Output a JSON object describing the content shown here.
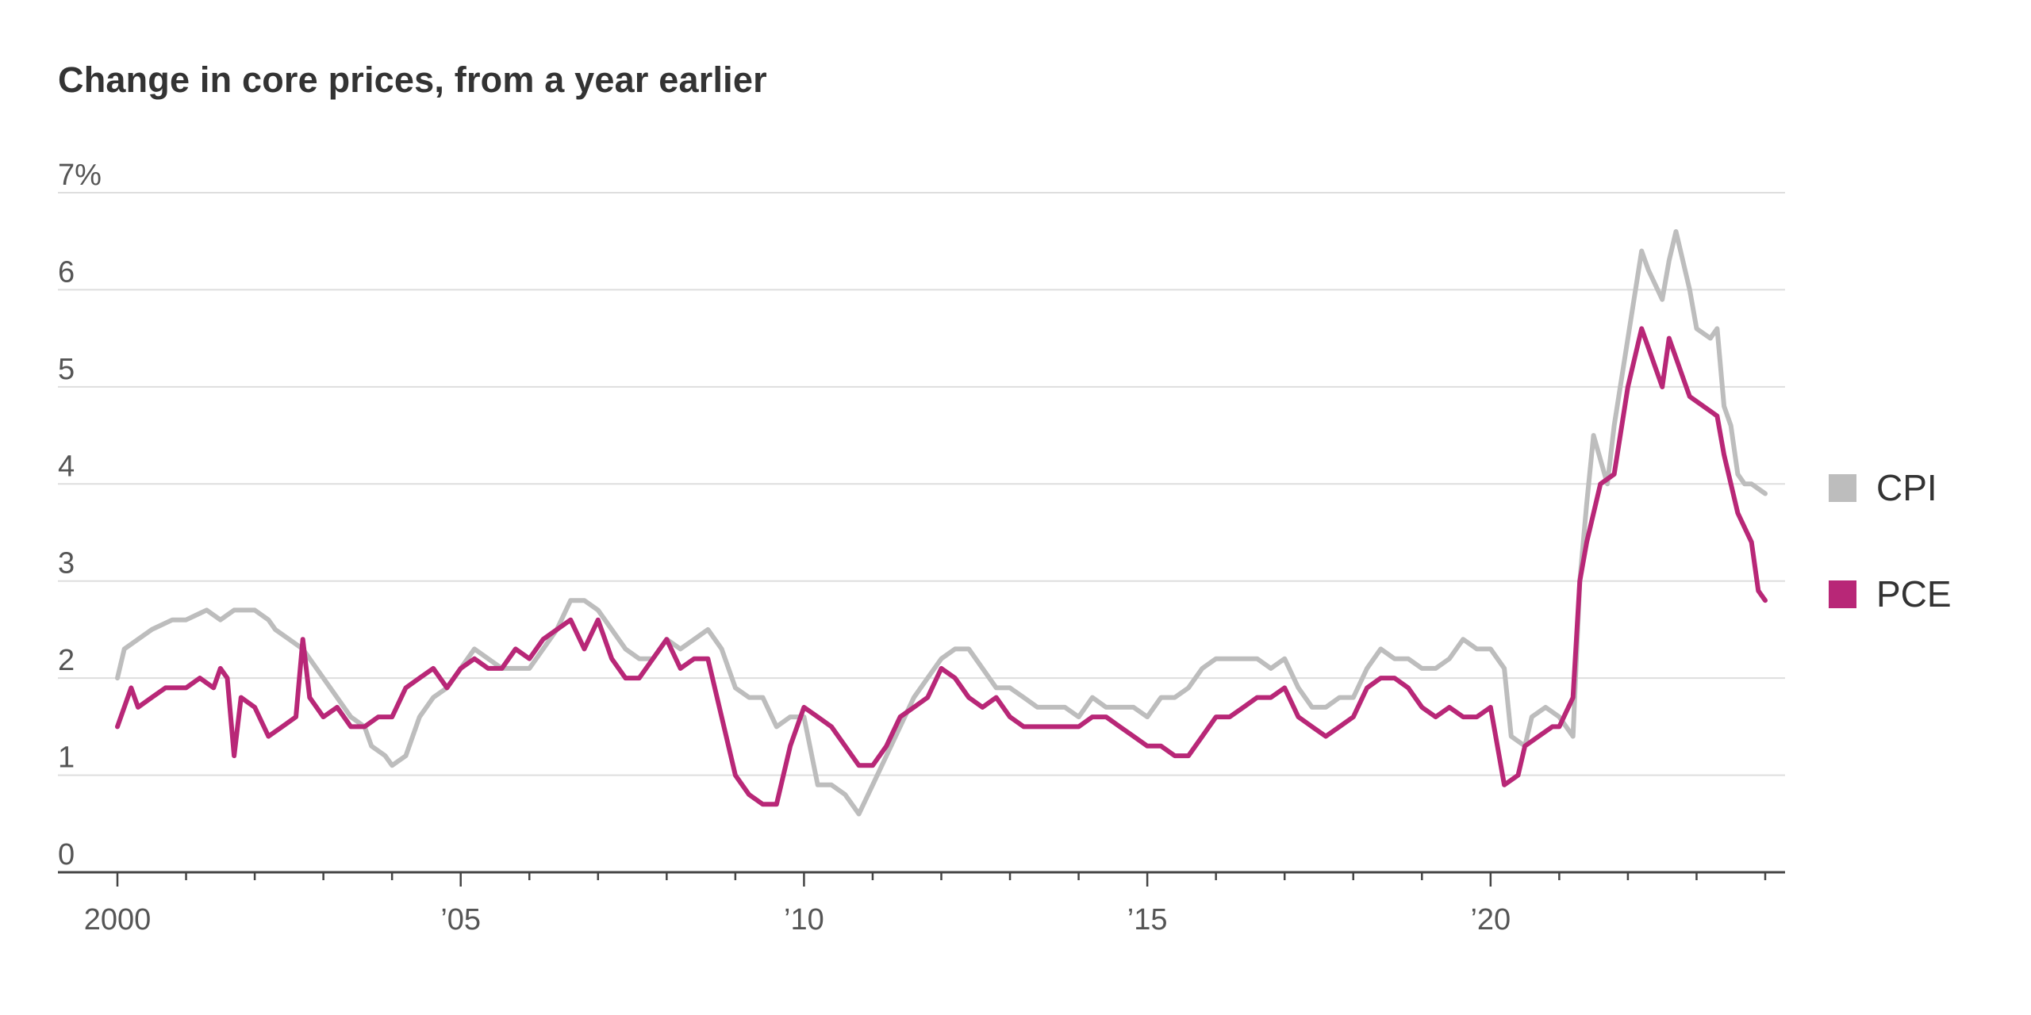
{
  "chart_data": {
    "type": "line",
    "title": "Change in core prices, from a year earlier",
    "xlabel": "",
    "ylabel": "",
    "xlim": [
      2000.0,
      2024.0
    ],
    "ylim": [
      0,
      7
    ],
    "grid": true,
    "legend_position": "right",
    "y_ticks": [
      {
        "value": 7,
        "label": "7%"
      },
      {
        "value": 6,
        "label": "6"
      },
      {
        "value": 5,
        "label": "5"
      },
      {
        "value": 4,
        "label": "4"
      },
      {
        "value": 3,
        "label": "3"
      },
      {
        "value": 2,
        "label": "2"
      },
      {
        "value": 1,
        "label": "1"
      },
      {
        "value": 0,
        "label": "0"
      }
    ],
    "x_ticks": [
      {
        "value": 2000,
        "label": "2000"
      },
      {
        "value": 2005,
        "label": "’05"
      },
      {
        "value": 2010,
        "label": "’10"
      },
      {
        "value": 2015,
        "label": "’15"
      },
      {
        "value": 2020,
        "label": "’20"
      }
    ],
    "series": [
      {
        "name": "CPI",
        "color": "#bdbdbd",
        "points": [
          [
            2000.0,
            2.0
          ],
          [
            2000.1,
            2.3
          ],
          [
            2000.3,
            2.4
          ],
          [
            2000.5,
            2.5
          ],
          [
            2000.8,
            2.6
          ],
          [
            2001.0,
            2.6
          ],
          [
            2001.3,
            2.7
          ],
          [
            2001.5,
            2.6
          ],
          [
            2001.7,
            2.7
          ],
          [
            2002.0,
            2.7
          ],
          [
            2002.2,
            2.6
          ],
          [
            2002.3,
            2.5
          ],
          [
            2002.5,
            2.4
          ],
          [
            2002.7,
            2.3
          ],
          [
            2002.8,
            2.2
          ],
          [
            2003.0,
            2.0
          ],
          [
            2003.2,
            1.8
          ],
          [
            2003.4,
            1.6
          ],
          [
            2003.6,
            1.5
          ],
          [
            2003.7,
            1.3
          ],
          [
            2003.9,
            1.2
          ],
          [
            2004.0,
            1.1
          ],
          [
            2004.2,
            1.2
          ],
          [
            2004.4,
            1.6
          ],
          [
            2004.6,
            1.8
          ],
          [
            2004.8,
            1.9
          ],
          [
            2005.0,
            2.1
          ],
          [
            2005.2,
            2.3
          ],
          [
            2005.4,
            2.2
          ],
          [
            2005.6,
            2.1
          ],
          [
            2005.8,
            2.1
          ],
          [
            2006.0,
            2.1
          ],
          [
            2006.2,
            2.3
          ],
          [
            2006.4,
            2.5
          ],
          [
            2006.6,
            2.8
          ],
          [
            2006.8,
            2.8
          ],
          [
            2007.0,
            2.7
          ],
          [
            2007.2,
            2.5
          ],
          [
            2007.4,
            2.3
          ],
          [
            2007.6,
            2.2
          ],
          [
            2007.8,
            2.2
          ],
          [
            2008.0,
            2.4
          ],
          [
            2008.2,
            2.3
          ],
          [
            2008.4,
            2.4
          ],
          [
            2008.6,
            2.5
          ],
          [
            2008.8,
            2.3
          ],
          [
            2009.0,
            1.9
          ],
          [
            2009.2,
            1.8
          ],
          [
            2009.4,
            1.8
          ],
          [
            2009.6,
            1.5
          ],
          [
            2009.8,
            1.6
          ],
          [
            2010.0,
            1.6
          ],
          [
            2010.2,
            0.9
          ],
          [
            2010.4,
            0.9
          ],
          [
            2010.6,
            0.8
          ],
          [
            2010.8,
            0.6
          ],
          [
            2011.0,
            0.9
          ],
          [
            2011.2,
            1.2
          ],
          [
            2011.4,
            1.5
          ],
          [
            2011.6,
            1.8
          ],
          [
            2011.8,
            2.0
          ],
          [
            2012.0,
            2.2
          ],
          [
            2012.2,
            2.3
          ],
          [
            2012.4,
            2.3
          ],
          [
            2012.6,
            2.1
          ],
          [
            2012.8,
            1.9
          ],
          [
            2013.0,
            1.9
          ],
          [
            2013.2,
            1.8
          ],
          [
            2013.4,
            1.7
          ],
          [
            2013.6,
            1.7
          ],
          [
            2013.8,
            1.7
          ],
          [
            2014.0,
            1.6
          ],
          [
            2014.2,
            1.8
          ],
          [
            2014.4,
            1.7
          ],
          [
            2014.6,
            1.7
          ],
          [
            2014.8,
            1.7
          ],
          [
            2015.0,
            1.6
          ],
          [
            2015.2,
            1.8
          ],
          [
            2015.4,
            1.8
          ],
          [
            2015.6,
            1.9
          ],
          [
            2015.8,
            2.1
          ],
          [
            2016.0,
            2.2
          ],
          [
            2016.2,
            2.2
          ],
          [
            2016.4,
            2.2
          ],
          [
            2016.6,
            2.2
          ],
          [
            2016.8,
            2.1
          ],
          [
            2017.0,
            2.2
          ],
          [
            2017.2,
            1.9
          ],
          [
            2017.4,
            1.7
          ],
          [
            2017.6,
            1.7
          ],
          [
            2017.8,
            1.8
          ],
          [
            2018.0,
            1.8
          ],
          [
            2018.2,
            2.1
          ],
          [
            2018.4,
            2.3
          ],
          [
            2018.6,
            2.2
          ],
          [
            2018.8,
            2.2
          ],
          [
            2019.0,
            2.1
          ],
          [
            2019.2,
            2.1
          ],
          [
            2019.4,
            2.2
          ],
          [
            2019.6,
            2.4
          ],
          [
            2019.8,
            2.3
          ],
          [
            2020.0,
            2.3
          ],
          [
            2020.2,
            2.1
          ],
          [
            2020.3,
            1.4
          ],
          [
            2020.5,
            1.3
          ],
          [
            2020.6,
            1.6
          ],
          [
            2020.8,
            1.7
          ],
          [
            2021.0,
            1.6
          ],
          [
            2021.2,
            1.4
          ],
          [
            2021.3,
            3.0
          ],
          [
            2021.4,
            3.8
          ],
          [
            2021.5,
            4.5
          ],
          [
            2021.7,
            4.0
          ],
          [
            2021.8,
            4.6
          ],
          [
            2022.0,
            5.5
          ],
          [
            2022.2,
            6.4
          ],
          [
            2022.3,
            6.2
          ],
          [
            2022.5,
            5.9
          ],
          [
            2022.6,
            6.3
          ],
          [
            2022.7,
            6.6
          ],
          [
            2022.9,
            6.0
          ],
          [
            2023.0,
            5.6
          ],
          [
            2023.2,
            5.5
          ],
          [
            2023.3,
            5.6
          ],
          [
            2023.4,
            4.8
          ],
          [
            2023.5,
            4.6
          ],
          [
            2023.6,
            4.1
          ],
          [
            2023.7,
            4.0
          ],
          [
            2023.8,
            4.0
          ],
          [
            2024.0,
            3.9
          ]
        ]
      },
      {
        "name": "PCE",
        "color": "#b82777",
        "points": [
          [
            2000.0,
            1.5
          ],
          [
            2000.2,
            1.9
          ],
          [
            2000.3,
            1.7
          ],
          [
            2000.5,
            1.8
          ],
          [
            2000.7,
            1.9
          ],
          [
            2000.8,
            1.9
          ],
          [
            2001.0,
            1.9
          ],
          [
            2001.2,
            2.0
          ],
          [
            2001.4,
            1.9
          ],
          [
            2001.5,
            2.1
          ],
          [
            2001.6,
            2.0
          ],
          [
            2001.7,
            1.2
          ],
          [
            2001.8,
            1.8
          ],
          [
            2002.0,
            1.7
          ],
          [
            2002.2,
            1.4
          ],
          [
            2002.4,
            1.5
          ],
          [
            2002.6,
            1.6
          ],
          [
            2002.7,
            2.4
          ],
          [
            2002.8,
            1.8
          ],
          [
            2003.0,
            1.6
          ],
          [
            2003.2,
            1.7
          ],
          [
            2003.4,
            1.5
          ],
          [
            2003.6,
            1.5
          ],
          [
            2003.8,
            1.6
          ],
          [
            2004.0,
            1.6
          ],
          [
            2004.2,
            1.9
          ],
          [
            2004.4,
            2.0
          ],
          [
            2004.6,
            2.1
          ],
          [
            2004.8,
            1.9
          ],
          [
            2005.0,
            2.1
          ],
          [
            2005.2,
            2.2
          ],
          [
            2005.4,
            2.1
          ],
          [
            2005.6,
            2.1
          ],
          [
            2005.8,
            2.3
          ],
          [
            2006.0,
            2.2
          ],
          [
            2006.2,
            2.4
          ],
          [
            2006.4,
            2.5
          ],
          [
            2006.6,
            2.6
          ],
          [
            2006.8,
            2.3
          ],
          [
            2007.0,
            2.6
          ],
          [
            2007.2,
            2.2
          ],
          [
            2007.4,
            2.0
          ],
          [
            2007.6,
            2.0
          ],
          [
            2007.8,
            2.2
          ],
          [
            2008.0,
            2.4
          ],
          [
            2008.2,
            2.1
          ],
          [
            2008.4,
            2.2
          ],
          [
            2008.6,
            2.2
          ],
          [
            2008.8,
            1.6
          ],
          [
            2009.0,
            1.0
          ],
          [
            2009.2,
            0.8
          ],
          [
            2009.4,
            0.7
          ],
          [
            2009.6,
            0.7
          ],
          [
            2009.8,
            1.3
          ],
          [
            2010.0,
            1.7
          ],
          [
            2010.2,
            1.6
          ],
          [
            2010.4,
            1.5
          ],
          [
            2010.6,
            1.3
          ],
          [
            2010.8,
            1.1
          ],
          [
            2011.0,
            1.1
          ],
          [
            2011.2,
            1.3
          ],
          [
            2011.4,
            1.6
          ],
          [
            2011.6,
            1.7
          ],
          [
            2011.8,
            1.8
          ],
          [
            2012.0,
            2.1
          ],
          [
            2012.2,
            2.0
          ],
          [
            2012.4,
            1.8
          ],
          [
            2012.6,
            1.7
          ],
          [
            2012.8,
            1.8
          ],
          [
            2013.0,
            1.6
          ],
          [
            2013.2,
            1.5
          ],
          [
            2013.4,
            1.5
          ],
          [
            2013.6,
            1.5
          ],
          [
            2013.8,
            1.5
          ],
          [
            2014.0,
            1.5
          ],
          [
            2014.2,
            1.6
          ],
          [
            2014.4,
            1.6
          ],
          [
            2014.6,
            1.5
          ],
          [
            2014.8,
            1.4
          ],
          [
            2015.0,
            1.3
          ],
          [
            2015.2,
            1.3
          ],
          [
            2015.4,
            1.2
          ],
          [
            2015.6,
            1.2
          ],
          [
            2015.8,
            1.4
          ],
          [
            2016.0,
            1.6
          ],
          [
            2016.2,
            1.6
          ],
          [
            2016.4,
            1.7
          ],
          [
            2016.6,
            1.8
          ],
          [
            2016.8,
            1.8
          ],
          [
            2017.0,
            1.9
          ],
          [
            2017.2,
            1.6
          ],
          [
            2017.4,
            1.5
          ],
          [
            2017.6,
            1.4
          ],
          [
            2017.8,
            1.5
          ],
          [
            2018.0,
            1.6
          ],
          [
            2018.2,
            1.9
          ],
          [
            2018.4,
            2.0
          ],
          [
            2018.6,
            2.0
          ],
          [
            2018.8,
            1.9
          ],
          [
            2019.0,
            1.7
          ],
          [
            2019.2,
            1.6
          ],
          [
            2019.4,
            1.7
          ],
          [
            2019.6,
            1.6
          ],
          [
            2019.8,
            1.6
          ],
          [
            2020.0,
            1.7
          ],
          [
            2020.2,
            0.9
          ],
          [
            2020.4,
            1.0
          ],
          [
            2020.5,
            1.3
          ],
          [
            2020.7,
            1.4
          ],
          [
            2020.9,
            1.5
          ],
          [
            2021.0,
            1.5
          ],
          [
            2021.2,
            1.8
          ],
          [
            2021.3,
            3.0
          ],
          [
            2021.4,
            3.4
          ],
          [
            2021.6,
            4.0
          ],
          [
            2021.8,
            4.1
          ],
          [
            2022.0,
            5.0
          ],
          [
            2022.2,
            5.6
          ],
          [
            2022.3,
            5.4
          ],
          [
            2022.4,
            5.2
          ],
          [
            2022.5,
            5.0
          ],
          [
            2022.6,
            5.5
          ],
          [
            2022.8,
            5.1
          ],
          [
            2022.9,
            4.9
          ],
          [
            2023.1,
            4.8
          ],
          [
            2023.3,
            4.7
          ],
          [
            2023.4,
            4.3
          ],
          [
            2023.6,
            3.7
          ],
          [
            2023.8,
            3.4
          ],
          [
            2023.9,
            2.9
          ],
          [
            2024.0,
            2.8
          ]
        ]
      }
    ]
  }
}
